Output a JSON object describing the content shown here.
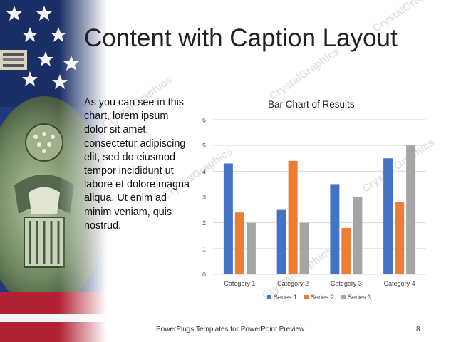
{
  "slide": {
    "title": "Content with Caption Layout",
    "caption": "As you can see in this chart, lorem ipsum dolor sit amet, consectetur adipiscing elit, sed do eiusmod tempor incididunt ut labore et dolore magna aliqua. Ut enim ad minim veniam, quis nostrud.",
    "footer": "PowerPlugs Templates for PowerPoint Preview",
    "page_number": "8",
    "watermark": "CrystalGraphics",
    "watermark_alt": "Crystal Graphics"
  },
  "colors": {
    "series1": "#4472C4",
    "series2": "#ED7D31",
    "series3": "#A5A5A5",
    "flag_blue": "#1f3a7a",
    "flag_red": "#b22234"
  },
  "chart_data": {
    "type": "bar",
    "title": "Bar Chart of Results",
    "categories": [
      "Category 1",
      "Category 2",
      "Category 3",
      "Category 4"
    ],
    "series": [
      {
        "name": "Series 1",
        "values": [
          4.3,
          2.5,
          3.5,
          4.5
        ]
      },
      {
        "name": "Series 2",
        "values": [
          2.4,
          4.4,
          1.8,
          2.8
        ]
      },
      {
        "name": "Series 3",
        "values": [
          2,
          2,
          3,
          5
        ]
      }
    ],
    "ylim": [
      0,
      6
    ],
    "yticks": [
      "0",
      "1",
      "2",
      "3",
      "4",
      "5",
      "6"
    ],
    "grid": true,
    "legend": "bottom"
  }
}
